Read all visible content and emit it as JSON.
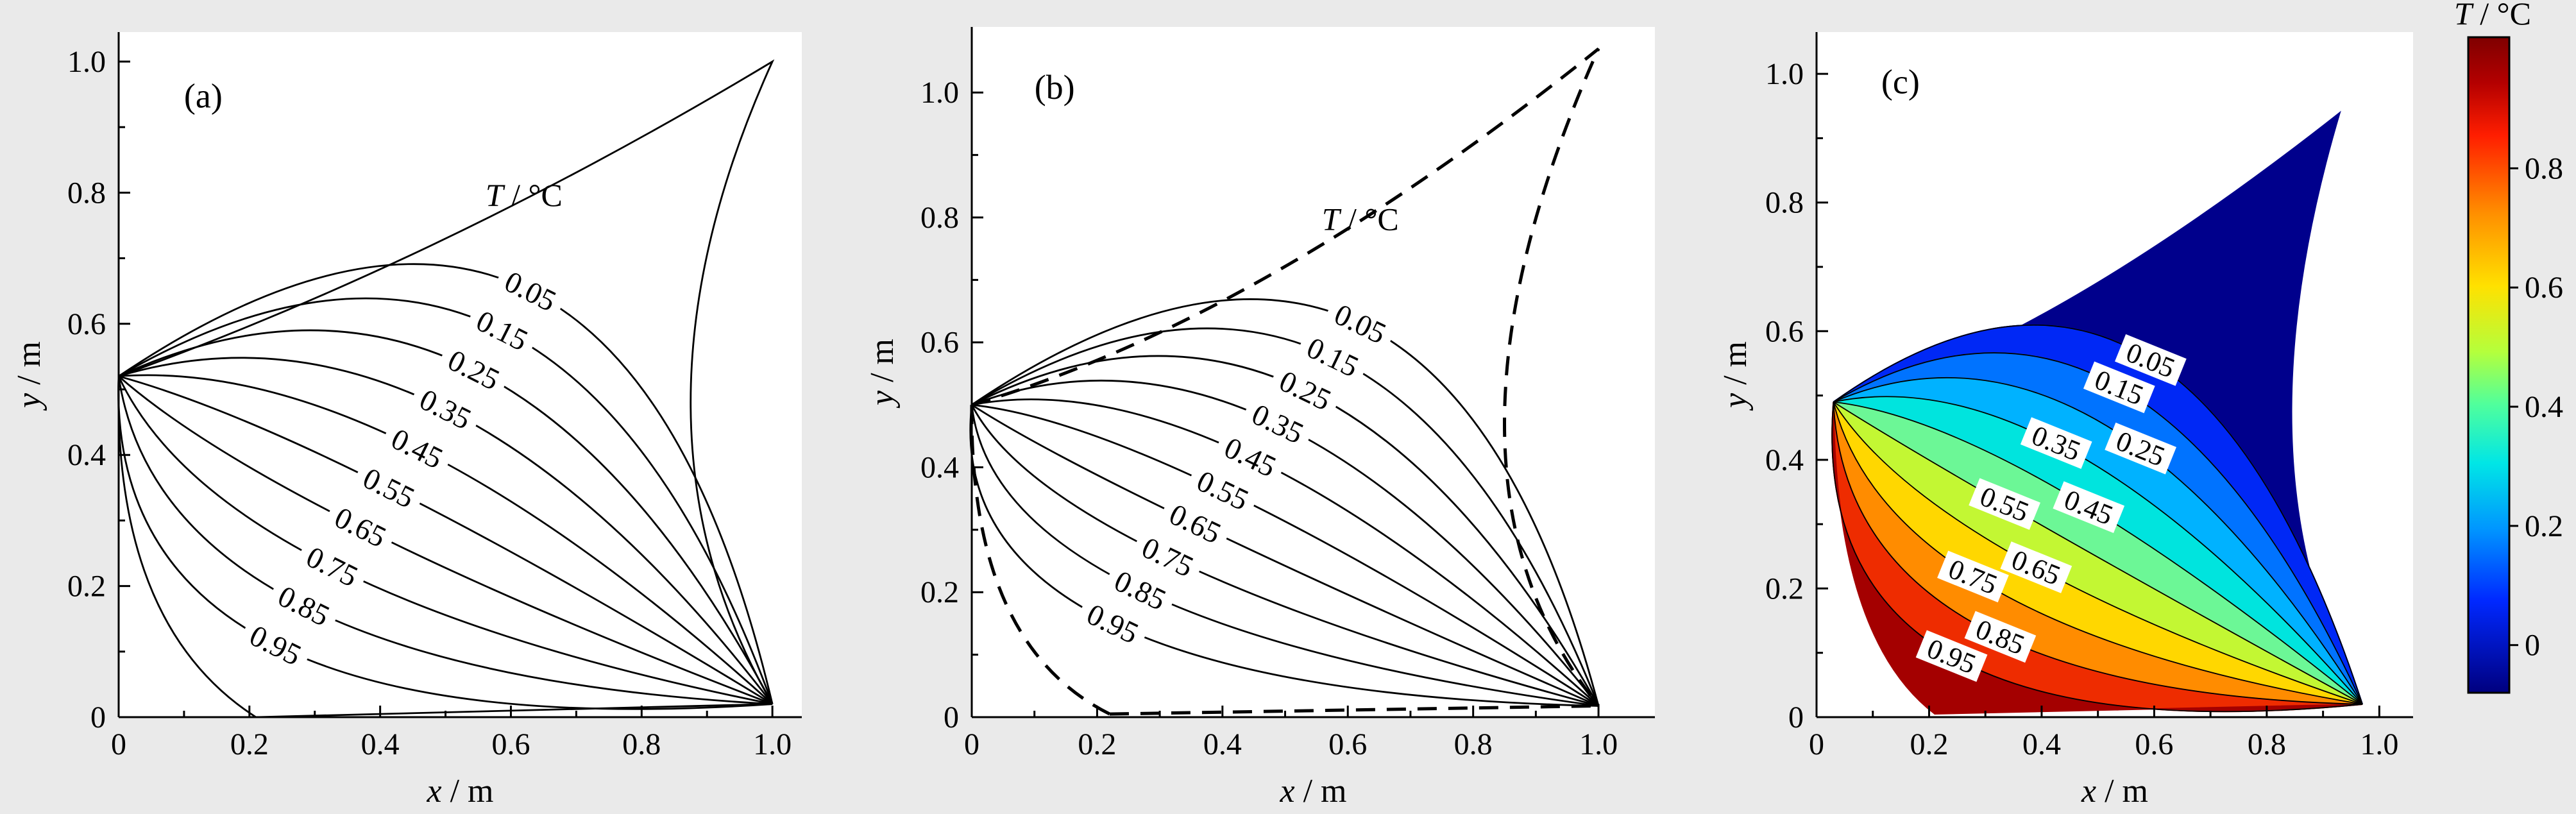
{
  "page": {
    "background": "#eaeaea",
    "plot_background": "#ffffff",
    "line_color": "#000000"
  },
  "chart_data": [
    {
      "type": "contour",
      "panel_tag": "(a)",
      "style": "lines",
      "boundary_style": "solid",
      "title": {
        "var": "T",
        "unit": "°C"
      },
      "xlabel": {
        "var": "x",
        "unit": "m"
      },
      "ylabel": {
        "var": "y",
        "unit": "m"
      },
      "xlim": [
        0,
        1.0
      ],
      "ylim": [
        0,
        1.0
      ],
      "xticks": {
        "values": [
          0,
          0.2,
          0.4,
          0.6,
          0.8,
          1.0
        ],
        "labels": [
          "0",
          "0.2",
          "0.4",
          "0.6",
          "0.8",
          "1.0"
        ]
      },
      "yticks": {
        "values": [
          0,
          0.2,
          0.4,
          0.6,
          0.8,
          1.0
        ],
        "labels": [
          "0",
          "0.2",
          "0.4",
          "0.6",
          "0.8",
          "1.0"
        ]
      },
      "levels": [
        0.05,
        0.15,
        0.25,
        0.35,
        0.45,
        0.55,
        0.65,
        0.75,
        0.85,
        0.95
      ],
      "level_labels": [
        "0.05",
        "0.15",
        "0.25",
        "0.35",
        "0.45",
        "0.55",
        "0.65",
        "0.75",
        "0.85",
        "0.95"
      ],
      "geometry": {
        "source_point": [
          0,
          0.52
        ],
        "sink_point": [
          1.0,
          0.02
        ],
        "top_corner": [
          1.0,
          1.0
        ],
        "bottom_corner": [
          0.21,
          0
        ],
        "edge_mid_top": [
          0.5,
          0.73
        ],
        "edge_mid_right": [
          0.875,
          0.48
        ],
        "edge_mid_left": [
          0.048,
          0.2
        ],
        "contour_mid_first": [
          0.63,
          0.65
        ],
        "contour_mid_last": [
          0.24,
          0.11
        ],
        "title_pos": [
          0.62,
          0.78
        ],
        "tag_pos": [
          0.1,
          0.93
        ]
      }
    },
    {
      "type": "contour",
      "panel_tag": "(b)",
      "style": "lines",
      "boundary_style": "dashed",
      "title": {
        "var": "T",
        "unit": "°C"
      },
      "xlabel": {
        "var": "x",
        "unit": "m"
      },
      "ylabel": {
        "var": "y",
        "unit": "m"
      },
      "xlim": [
        0,
        1.0
      ],
      "ylim": [
        0,
        1.0
      ],
      "xticks": {
        "values": [
          0,
          0.2,
          0.4,
          0.6,
          0.8,
          1.0
        ],
        "labels": [
          "0",
          "0.2",
          "0.4",
          "0.6",
          "0.8",
          "1.0"
        ]
      },
      "yticks": {
        "values": [
          0,
          0.2,
          0.4,
          0.6,
          0.8,
          1.0
        ],
        "labels": [
          "0",
          "0.2",
          "0.4",
          "0.6",
          "0.8",
          "1.0"
        ]
      },
      "levels": [
        0.05,
        0.15,
        0.25,
        0.35,
        0.45,
        0.55,
        0.65,
        0.75,
        0.85,
        0.95
      ],
      "level_labels": [
        "0.05",
        "0.15",
        "0.25",
        "0.35",
        "0.45",
        "0.55",
        "0.65",
        "0.75",
        "0.85",
        "0.95"
      ],
      "geometry": {
        "source_point": [
          0,
          0.5
        ],
        "sink_point": [
          1.0,
          0.018
        ],
        "top_corner": [
          1.0,
          1.07
        ],
        "bottom_corner": [
          0.22,
          0.005
        ],
        "edge_mid_top": [
          0.48,
          0.71
        ],
        "edge_mid_right": [
          0.85,
          0.47
        ],
        "edge_mid_left": [
          0.053,
          0.185
        ],
        "contour_mid_first": [
          0.62,
          0.63
        ],
        "contour_mid_last": [
          0.225,
          0.15
        ],
        "title_pos": [
          0.62,
          0.78
        ],
        "tag_pos": [
          0.1,
          0.99
        ]
      }
    },
    {
      "type": "contour",
      "panel_tag": "(c)",
      "style": "filled",
      "boundary_style": "none",
      "title": {
        "var": "T",
        "unit": "°C"
      },
      "xlabel": {
        "var": "x",
        "unit": "m"
      },
      "ylabel": {
        "var": "y",
        "unit": "m"
      },
      "xlim": [
        0,
        1.0
      ],
      "ylim": [
        0,
        1.0
      ],
      "xticks": {
        "values": [
          0,
          0.2,
          0.4,
          0.6,
          0.8,
          1.0
        ],
        "labels": [
          "0",
          "0.2",
          "0.4",
          "0.6",
          "0.8",
          "1.0"
        ]
      },
      "yticks": {
        "values": [
          0,
          0.2,
          0.4,
          0.6,
          0.8,
          1.0
        ],
        "labels": [
          "0",
          "0.2",
          "0.4",
          "0.6",
          "0.8",
          "1.0"
        ]
      },
      "levels": [
        0.05,
        0.15,
        0.25,
        0.35,
        0.45,
        0.55,
        0.65,
        0.75,
        0.85,
        0.95
      ],
      "level_labels": [
        "0.05",
        "0.15",
        "0.25",
        "0.35",
        "0.45",
        "0.55",
        "0.65",
        "0.75",
        "0.85",
        "0.95"
      ],
      "band_colors": [
        "#00008c",
        "#0028f5",
        "#0073ff",
        "#00b2ff",
        "#00e4de",
        "#6cf796",
        "#c3f733",
        "#ffd700",
        "#ff8c00",
        "#ee2c00",
        "#a40000"
      ],
      "geometry": {
        "source_point": [
          0.03,
          0.49
        ],
        "sink_point": [
          0.97,
          0.02
        ],
        "top_corner": [
          0.93,
          0.94
        ],
        "bottom_corner": [
          0.21,
          0.005
        ],
        "edge_mid_top": [
          0.44,
          0.645
        ],
        "edge_mid_right": [
          0.845,
          0.43
        ],
        "edge_mid_left": [
          0.077,
          0.185
        ],
        "contour_mid_first": [
          0.575,
          0.565
        ],
        "contour_mid_last": [
          0.24,
          0.095
        ],
        "label_t": [
          0.52,
          0.5,
          0.58,
          0.46,
          0.56,
          0.44,
          0.54,
          0.46,
          0.55,
          0.5
        ],
        "tag_pos": [
          0.115,
          0.97
        ]
      },
      "colorbar": {
        "title": {
          "var": "T",
          "unit": "°C"
        },
        "ticks": {
          "values": [
            0,
            0.2,
            0.4,
            0.6,
            0.8
          ],
          "labels": [
            "0",
            "0.2",
            "0.4",
            "0.6",
            "0.8"
          ]
        },
        "range": [
          -0.08,
          1.02
        ],
        "stops": [
          {
            "offset": 0,
            "color": "#7f0000"
          },
          {
            "offset": 0.07,
            "color": "#b40000"
          },
          {
            "offset": 0.15,
            "color": "#ff1e00"
          },
          {
            "offset": 0.27,
            "color": "#ff9000"
          },
          {
            "offset": 0.38,
            "color": "#ffe100"
          },
          {
            "offset": 0.48,
            "color": "#b4ff3c"
          },
          {
            "offset": 0.56,
            "color": "#50ff9c"
          },
          {
            "offset": 0.65,
            "color": "#00e6e6"
          },
          {
            "offset": 0.75,
            "color": "#0096ff"
          },
          {
            "offset": 0.86,
            "color": "#0028ff"
          },
          {
            "offset": 1,
            "color": "#00007f"
          }
        ]
      }
    }
  ]
}
